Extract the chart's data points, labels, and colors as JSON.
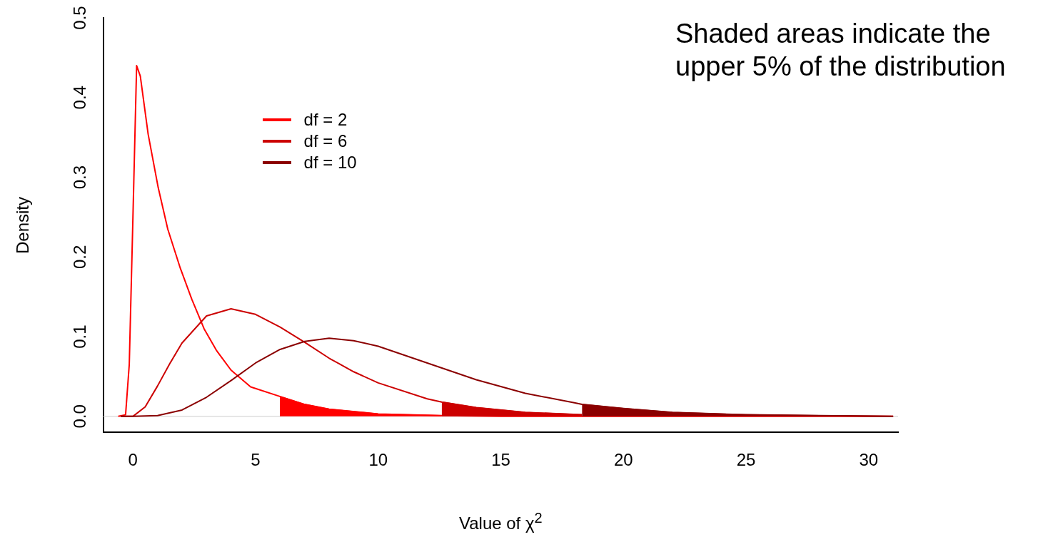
{
  "chart_data": {
    "type": "line",
    "xlabel": "Value of χ$^{2}$",
    "ylabel": "Density",
    "annotations": [
      "Shaded areas indicate the upper 5% of the distribution"
    ],
    "xlim": [
      -1.2,
      31.2
    ],
    "xticks": [
      0,
      5,
      10,
      15,
      20,
      25,
      30
    ],
    "ylim": [
      -0.02,
      0.5
    ],
    "yticks": [
      {
        "value": 0,
        "label": "0.0"
      },
      0.1,
      0.2,
      0.3,
      0.4,
      0.5
    ],
    "grid": false,
    "legend": "top left",
    "marker": "none",
    "line_style": "solid",
    "ref_lines": [
      {
        "axis": "y",
        "value": 0,
        "color": "#dddddd"
      }
    ],
    "series": [
      {
        "name": "df = 2",
        "color": "#ff0000",
        "type": "line",
        "x": [
          -0.6,
          -0.3,
          -0.15,
          0,
          0.15,
          0.3,
          0.62,
          1.03,
          1.42,
          1.93,
          2.4,
          2.9,
          3.4,
          4,
          4.8,
          5.99,
          7,
          8,
          10,
          12.59,
          15,
          20,
          25,
          31
        ],
        "values": [
          0,
          0.002,
          0.065,
          0.25,
          0.44,
          0.427,
          0.354,
          0.287,
          0.235,
          0.186,
          0.147,
          0.11,
          0.083,
          0.058,
          0.037,
          0.025,
          0.015,
          0.009,
          0.003,
          0.001,
          0,
          0,
          0,
          0
        ]
      },
      {
        "name": "df = 6",
        "color": "#cc0000",
        "type": "line",
        "x": [
          -0.5,
          0,
          0.5,
          1,
          1.5,
          2,
          3,
          4,
          5,
          6,
          7,
          8,
          9,
          10,
          12,
          12.59,
          14,
          16,
          18.31
        ],
        "values": [
          0,
          0,
          0.012,
          0.038,
          0.066,
          0.092,
          0.126,
          0.135,
          0.128,
          0.112,
          0.093,
          0.073,
          0.056,
          0.042,
          0.022,
          0.018,
          0.011,
          0.005,
          0.002
        ]
      },
      {
        "name": "df = 10",
        "color": "#8b0000",
        "type": "line",
        "x": [
          -0.5,
          0,
          1,
          2,
          3,
          4,
          5,
          6,
          7,
          8,
          9,
          10,
          12,
          14,
          16,
          18,
          18.31,
          20,
          22,
          25,
          28,
          31
        ],
        "values": [
          0,
          0,
          0.001,
          0.008,
          0.024,
          0.045,
          0.067,
          0.084,
          0.094,
          0.098,
          0.095,
          0.088,
          0.067,
          0.046,
          0.029,
          0.017,
          0.015,
          0.01,
          0.005,
          0.002,
          0.001,
          0
        ]
      },
      {
        "color": "#ff0000",
        "type": "area",
        "x": [
          5.99,
          7,
          8,
          10,
          12.59
        ],
        "values": [
          0.025,
          0.015,
          0.009,
          0.003,
          0.001
        ]
      },
      {
        "color": "#cc0000",
        "type": "area",
        "x": [
          12.59,
          14,
          16,
          18.31
        ],
        "values": [
          0.018,
          0.011,
          0.005,
          0.002
        ]
      },
      {
        "color": "#8b0000",
        "type": "area",
        "x": [
          18.31,
          20,
          22,
          25,
          28,
          31
        ],
        "values": [
          0.015,
          0.01,
          0.005,
          0.002,
          0.001,
          0
        ]
      }
    ]
  }
}
